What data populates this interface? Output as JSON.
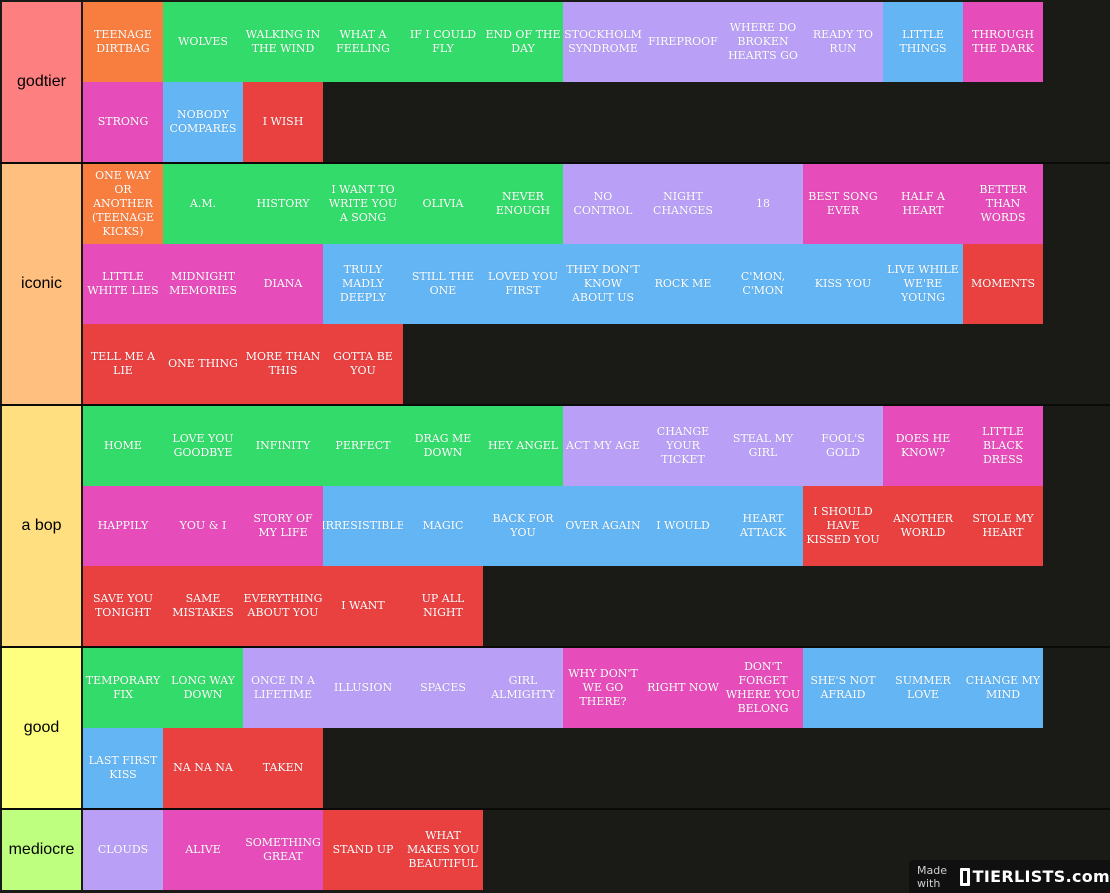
{
  "colors": {
    "orange": "#f87e3f",
    "green": "#33dc6a",
    "purple": "#b9a0f6",
    "blue": "#63b5f4",
    "magenta": "#e64dba",
    "red": "#e94040"
  },
  "tiers": [
    {
      "label": "godtier",
      "color": "#fe7f7f",
      "rows": 2,
      "items": [
        {
          "text": "TEENAGE DIRTBAG",
          "color": "orange"
        },
        {
          "text": "WOLVES",
          "color": "green"
        },
        {
          "text": "WALKING IN THE WIND",
          "color": "green"
        },
        {
          "text": "WHAT A FEELING",
          "color": "green"
        },
        {
          "text": "IF I COULD FLY",
          "color": "green"
        },
        {
          "text": "END OF THE DAY",
          "color": "green"
        },
        {
          "text": "STOCKHOLM SYNDROME",
          "color": "purple"
        },
        {
          "text": "FIREPROOF",
          "color": "purple"
        },
        {
          "text": "WHERE DO BROKEN HEARTS GO",
          "color": "purple"
        },
        {
          "text": "READY TO RUN",
          "color": "purple"
        },
        {
          "text": "LITTLE THINGS",
          "color": "blue"
        },
        {
          "text": "THROUGH THE DARK",
          "color": "magenta"
        },
        {
          "text": "STRONG",
          "color": "magenta"
        },
        {
          "text": "NOBODY COMPARES",
          "color": "blue"
        },
        {
          "text": "I WISH",
          "color": "red"
        }
      ]
    },
    {
      "label": "iconic",
      "color": "#ffbf7f",
      "rows": 3,
      "items": [
        {
          "text": "ONE WAY OR ANOTHER (TEENAGE KICKS)",
          "color": "orange"
        },
        {
          "text": "A.M.",
          "color": "green"
        },
        {
          "text": "HISTORY",
          "color": "green"
        },
        {
          "text": "I WANT TO WRITE YOU A SONG",
          "color": "green"
        },
        {
          "text": "OLIVIA",
          "color": "green"
        },
        {
          "text": "NEVER ENOUGH",
          "color": "green"
        },
        {
          "text": "NO CONTROL",
          "color": "purple"
        },
        {
          "text": "NIGHT CHANGES",
          "color": "purple"
        },
        {
          "text": "18",
          "color": "purple"
        },
        {
          "text": "BEST SONG EVER",
          "color": "magenta"
        },
        {
          "text": "HALF A HEART",
          "color": "magenta"
        },
        {
          "text": "BETTER THAN WORDS",
          "color": "magenta"
        },
        {
          "text": "LITTLE WHITE LIES",
          "color": "magenta"
        },
        {
          "text": "MIDNIGHT MEMORIES",
          "color": "magenta"
        },
        {
          "text": "DIANA",
          "color": "magenta"
        },
        {
          "text": "TRULY MADLY DEEPLY",
          "color": "blue"
        },
        {
          "text": "STILL THE ONE",
          "color": "blue"
        },
        {
          "text": "LOVED YOU FIRST",
          "color": "blue"
        },
        {
          "text": "THEY DON'T KNOW ABOUT US",
          "color": "blue"
        },
        {
          "text": "ROCK ME",
          "color": "blue"
        },
        {
          "text": "C'MON, C'MON",
          "color": "blue"
        },
        {
          "text": "KISS YOU",
          "color": "blue"
        },
        {
          "text": "LIVE WHILE WE'RE YOUNG",
          "color": "blue"
        },
        {
          "text": "MOMENTS",
          "color": "red"
        },
        {
          "text": "TELL ME A LIE",
          "color": "red"
        },
        {
          "text": "ONE THING",
          "color": "red"
        },
        {
          "text": "MORE THAN THIS",
          "color": "red"
        },
        {
          "text": "GOTTA BE YOU",
          "color": "red"
        }
      ]
    },
    {
      "label": "a bop",
      "color": "#ffdf7f",
      "rows": 3,
      "items": [
        {
          "text": "HOME",
          "color": "green"
        },
        {
          "text": "LOVE YOU GOODBYE",
          "color": "green"
        },
        {
          "text": "INFINITY",
          "color": "green"
        },
        {
          "text": "PERFECT",
          "color": "green"
        },
        {
          "text": "DRAG ME DOWN",
          "color": "green"
        },
        {
          "text": "HEY ANGEL",
          "color": "green"
        },
        {
          "text": "ACT MY AGE",
          "color": "purple"
        },
        {
          "text": "CHANGE YOUR TICKET",
          "color": "purple"
        },
        {
          "text": "STEAL MY GIRL",
          "color": "purple"
        },
        {
          "text": "FOOL'S GOLD",
          "color": "purple"
        },
        {
          "text": "DOES HE KNOW?",
          "color": "magenta"
        },
        {
          "text": "LITTLE BLACK DRESS",
          "color": "magenta"
        },
        {
          "text": "HAPPILY",
          "color": "magenta"
        },
        {
          "text": "YOU & I",
          "color": "magenta"
        },
        {
          "text": "STORY OF MY LIFE",
          "color": "magenta"
        },
        {
          "text": "IRRESISTIBLE",
          "color": "blue"
        },
        {
          "text": "MAGIC",
          "color": "blue"
        },
        {
          "text": "BACK FOR YOU",
          "color": "blue"
        },
        {
          "text": "OVER AGAIN",
          "color": "blue"
        },
        {
          "text": "I WOULD",
          "color": "blue"
        },
        {
          "text": "HEART ATTACK",
          "color": "blue"
        },
        {
          "text": "I SHOULD HAVE KISSED YOU",
          "color": "red"
        },
        {
          "text": "ANOTHER WORLD",
          "color": "red"
        },
        {
          "text": "STOLE MY HEART",
          "color": "red"
        },
        {
          "text": "SAVE YOU TONIGHT",
          "color": "red"
        },
        {
          "text": "SAME MISTAKES",
          "color": "red"
        },
        {
          "text": "EVERYTHING ABOUT YOU",
          "color": "red"
        },
        {
          "text": "I WANT",
          "color": "red"
        },
        {
          "text": "UP ALL NIGHT",
          "color": "red"
        }
      ]
    },
    {
      "label": "good",
      "color": "#ffff7f",
      "rows": 2,
      "items": [
        {
          "text": "TEMPORARY FIX",
          "color": "green"
        },
        {
          "text": "LONG WAY DOWN",
          "color": "green"
        },
        {
          "text": "ONCE IN A LIFETIME",
          "color": "purple"
        },
        {
          "text": "ILLUSION",
          "color": "purple"
        },
        {
          "text": "SPACES",
          "color": "purple"
        },
        {
          "text": "GIRL ALMIGHTY",
          "color": "purple"
        },
        {
          "text": "WHY DON'T WE GO THERE?",
          "color": "magenta"
        },
        {
          "text": "RIGHT NOW",
          "color": "magenta"
        },
        {
          "text": "DON'T FORGET WHERE YOU BELONG",
          "color": "magenta"
        },
        {
          "text": "SHE'S NOT AFRAID",
          "color": "blue"
        },
        {
          "text": "SUMMER LOVE",
          "color": "blue"
        },
        {
          "text": "CHANGE MY MIND",
          "color": "blue"
        },
        {
          "text": "LAST FIRST KISS",
          "color": "blue"
        },
        {
          "text": "NA NA NA",
          "color": "red"
        },
        {
          "text": "TAKEN",
          "color": "red"
        }
      ]
    },
    {
      "label": "mediocre",
      "color": "#bfff7f",
      "rows": 1,
      "items": [
        {
          "text": "CLOUDS",
          "color": "purple"
        },
        {
          "text": "ALIVE",
          "color": "magenta"
        },
        {
          "text": "SOMETHING GREAT",
          "color": "magenta"
        },
        {
          "text": "STAND UP",
          "color": "red"
        },
        {
          "text": "WHAT MAKES YOU BEAUTIFUL",
          "color": "red"
        }
      ]
    }
  ],
  "watermark": {
    "made_with": "Made with",
    "brand": "TIERLISTS.com"
  }
}
